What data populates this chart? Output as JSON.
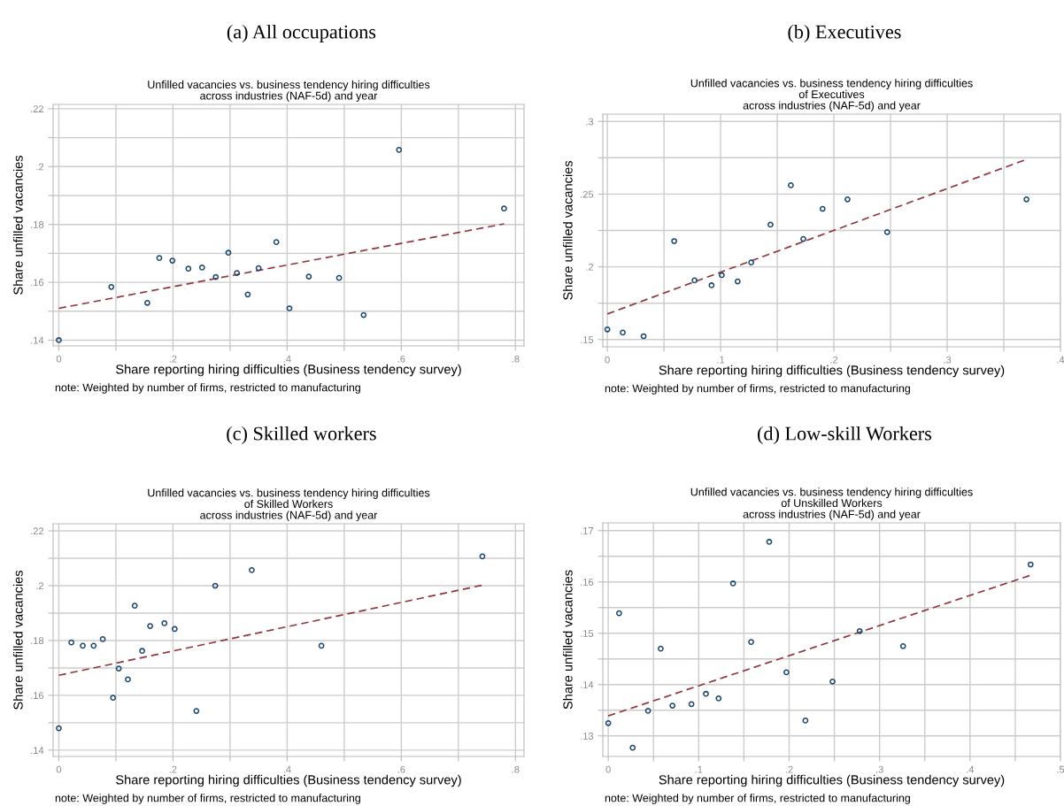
{
  "chart_data": [
    {
      "type": "scatter",
      "title": "(a) All occupations",
      "subtitle": "Unfilled vacancies vs. business tendency hiring difficulties\nacross industries (NAF-5d) and year",
      "xlabel": "Share reporting hiring difficulties (Business tendency survey)",
      "ylabel": "Share unfilled vacancies",
      "annotations": [
        "note: Weighted by number of firms, restricted to manufacturing"
      ],
      "grid": true,
      "xlim": [
        -0.01,
        0.815
      ],
      "ylim": [
        0.138,
        0.2215
      ],
      "xticks": [
        {
          "value": 0,
          "label": "0"
        },
        {
          "value": 0.1,
          "label": null
        },
        {
          "value": 0.2,
          "label": ".2"
        },
        {
          "value": 0.3,
          "label": null
        },
        {
          "value": 0.4,
          "label": ".4"
        },
        {
          "value": 0.5,
          "label": null
        },
        {
          "value": 0.6,
          "label": ".6"
        },
        {
          "value": 0.7,
          "label": null
        },
        {
          "value": 0.8,
          "label": ".8"
        }
      ],
      "yticks": [
        {
          "value": 0.14,
          "label": ".14"
        },
        {
          "value": 0.15,
          "label": null
        },
        {
          "value": 0.16,
          "label": ".16"
        },
        {
          "value": 0.17,
          "label": null
        },
        {
          "value": 0.18,
          "label": ".18"
        },
        {
          "value": 0.19,
          "label": null
        },
        {
          "value": 0.2,
          "label": ".2"
        },
        {
          "value": 0.21,
          "label": null
        },
        {
          "value": 0.22,
          "label": ".22"
        }
      ],
      "series": [
        {
          "marker": "circle",
          "color": "#1a476f",
          "x": [
            0,
            0.092,
            0.155,
            0.176,
            0.199,
            0.227,
            0.251,
            0.275,
            0.297,
            0.312,
            0.331,
            0.35,
            0.381,
            0.404,
            0.438,
            0.491,
            0.534,
            0.596,
            0.78
          ],
          "values": [
            0.14,
            0.1584,
            0.1529,
            0.1684,
            0.1675,
            0.1647,
            0.1651,
            0.1618,
            0.1702,
            0.1632,
            0.1558,
            0.1649,
            0.1739,
            0.151,
            0.162,
            0.1615,
            0.1487,
            0.2058,
            0.1855
          ]
        },
        {
          "type": "line",
          "color": "#90353b",
          "line_style": "dashed",
          "x": [
            0,
            0.78
          ],
          "values": [
            0.151,
            0.1802
          ]
        }
      ]
    },
    {
      "type": "scatter",
      "title": "(b) Executives",
      "subtitle": "Unfilled vacancies vs. business tendency hiring difficulties\nof Executives\nacross industries (NAF-5d) and year",
      "xlabel": "Share reporting hiring difficulties (Business tendency survey)",
      "ylabel": "Share unfilled vacancies",
      "annotations": [
        "note: Weighted by number of firms, restricted to manufacturing"
      ],
      "grid": true,
      "xlim": [
        -0.004,
        0.4
      ],
      "ylim": [
        0.145,
        0.305
      ],
      "xticks": [
        {
          "value": 0,
          "label": "0"
        },
        {
          "value": 0.05,
          "label": null
        },
        {
          "value": 0.1,
          "label": ".1"
        },
        {
          "value": 0.15,
          "label": null
        },
        {
          "value": 0.2,
          "label": ".2"
        },
        {
          "value": 0.25,
          "label": null
        },
        {
          "value": 0.3,
          "label": ".3"
        },
        {
          "value": 0.35,
          "label": null
        },
        {
          "value": 0.4,
          "label": ".4"
        }
      ],
      "yticks": [
        {
          "value": 0.15,
          "label": ".15"
        },
        {
          "value": 0.175,
          "label": null
        },
        {
          "value": 0.2,
          "label": ".2"
        },
        {
          "value": 0.225,
          "label": null
        },
        {
          "value": 0.25,
          "label": ".25"
        },
        {
          "value": 0.275,
          "label": null
        },
        {
          "value": 0.3,
          "label": ".3"
        }
      ],
      "series": [
        {
          "marker": "circle",
          "color": "#1a476f",
          "x": [
            0,
            0.0136,
            0.032,
            0.059,
            0.077,
            0.092,
            0.101,
            0.115,
            0.127,
            0.144,
            0.162,
            0.173,
            0.19,
            0.212,
            0.247,
            0.37
          ],
          "values": [
            0.157,
            0.1548,
            0.1523,
            0.2177,
            0.1907,
            0.1873,
            0.1943,
            0.19,
            0.203,
            0.229,
            0.2561,
            0.2192,
            0.2399,
            0.2464,
            0.2239,
            0.2464
          ]
        },
        {
          "type": "line",
          "color": "#90353b",
          "line_style": "dashed",
          "x": [
            0,
            0.37
          ],
          "values": [
            0.1676,
            0.2739
          ]
        }
      ]
    },
    {
      "type": "scatter",
      "title": "(c) Skilled workers",
      "subtitle": "Unfilled vacancies vs. business tendency hiring difficulties\nof Skilled Workers\nacross industries (NAF-5d) and year",
      "xlabel": "Share reporting hiring difficulties (Business tendency survey)",
      "ylabel": "Share unfilled vacancies",
      "annotations": [
        "note: Weighted by number of firms, restricted to manufacturing"
      ],
      "grid": true,
      "xlim": [
        -0.01,
        0.815
      ],
      "ylim": [
        0.1377,
        0.2226
      ],
      "xticks": [
        {
          "value": 0,
          "label": "0"
        },
        {
          "value": 0.1,
          "label": null
        },
        {
          "value": 0.2,
          "label": ".2"
        },
        {
          "value": 0.3,
          "label": null
        },
        {
          "value": 0.4,
          "label": ".4"
        },
        {
          "value": 0.5,
          "label": null
        },
        {
          "value": 0.6,
          "label": ".6"
        },
        {
          "value": 0.7,
          "label": null
        },
        {
          "value": 0.8,
          "label": ".8"
        }
      ],
      "yticks": [
        {
          "value": 0.14,
          "label": ".14"
        },
        {
          "value": 0.15,
          "label": null
        },
        {
          "value": 0.16,
          "label": ".16"
        },
        {
          "value": 0.17,
          "label": null
        },
        {
          "value": 0.18,
          "label": ".18"
        },
        {
          "value": 0.19,
          "label": null
        },
        {
          "value": 0.2,
          "label": ".2"
        },
        {
          "value": 0.21,
          "label": null
        },
        {
          "value": 0.22,
          "label": ".22"
        }
      ],
      "series": [
        {
          "marker": "circle",
          "color": "#1a476f",
          "x": [
            0,
            0.022,
            0.042,
            0.061,
            0.077,
            0.095,
            0.105,
            0.121,
            0.133,
            0.146,
            0.16,
            0.185,
            0.203,
            0.241,
            0.274,
            0.338,
            0.46,
            0.742
          ],
          "values": [
            0.148,
            0.1793,
            0.1781,
            0.1781,
            0.1805,
            0.1591,
            0.1698,
            0.1658,
            0.1927,
            0.1762,
            0.1853,
            0.1863,
            0.1842,
            0.1543,
            0.2,
            0.2057,
            0.1781,
            0.2107
          ]
        },
        {
          "type": "line",
          "color": "#90353b",
          "line_style": "dashed",
          "x": [
            0,
            0.742
          ],
          "values": [
            0.1673,
            0.2002
          ]
        }
      ]
    },
    {
      "type": "scatter",
      "title": "(d) Low-skill Workers",
      "subtitle": "Unfilled vacancies vs. business tendency hiring difficulties\nof Unskilled Workers\nacross industries (NAF-5d) and year",
      "xlabel": "Share reporting hiring difficulties (Business tendency survey)",
      "ylabel": "Share unfilled vacancies",
      "annotations": [
        "note: Weighted by number of firms, restricted to manufacturing"
      ],
      "grid": true,
      "xlim": [
        -0.006,
        0.5
      ],
      "ylim": [
        0.126,
        0.1715
      ],
      "xticks": [
        {
          "value": 0,
          "label": "0"
        },
        {
          "value": 0.05,
          "label": null
        },
        {
          "value": 0.1,
          "label": ".1"
        },
        {
          "value": 0.15,
          "label": null
        },
        {
          "value": 0.2,
          "label": ".2"
        },
        {
          "value": 0.25,
          "label": null
        },
        {
          "value": 0.3,
          "label": ".3"
        },
        {
          "value": 0.35,
          "label": null
        },
        {
          "value": 0.4,
          "label": ".4"
        },
        {
          "value": 0.45,
          "label": null
        },
        {
          "value": 0.5,
          "label": ".5"
        }
      ],
      "yticks": [
        {
          "value": 0.13,
          "label": ".13"
        },
        {
          "value": 0.135,
          "label": null
        },
        {
          "value": 0.14,
          "label": ".14"
        },
        {
          "value": 0.145,
          "label": null
        },
        {
          "value": 0.15,
          "label": ".15"
        },
        {
          "value": 0.155,
          "label": null
        },
        {
          "value": 0.16,
          "label": ".16"
        },
        {
          "value": 0.165,
          "label": null
        },
        {
          "value": 0.17,
          "label": ".17"
        }
      ],
      "series": [
        {
          "marker": "circle",
          "color": "#1a476f",
          "x": [
            0,
            0.012,
            0.027,
            0.044,
            0.058,
            0.071,
            0.092,
            0.108,
            0.122,
            0.138,
            0.158,
            0.178,
            0.197,
            0.218,
            0.248,
            0.278,
            0.326,
            0.467
          ],
          "values": [
            0.1325,
            0.1539,
            0.1277,
            0.1349,
            0.147,
            0.1359,
            0.1362,
            0.1382,
            0.1373,
            0.1597,
            0.1483,
            0.1678,
            0.1424,
            0.133,
            0.1406,
            0.1504,
            0.1475,
            0.1634
          ]
        },
        {
          "type": "line",
          "color": "#90353b",
          "line_style": "dashed",
          "x": [
            0,
            0.467
          ],
          "values": [
            0.1339,
            0.1613
          ]
        }
      ]
    }
  ]
}
